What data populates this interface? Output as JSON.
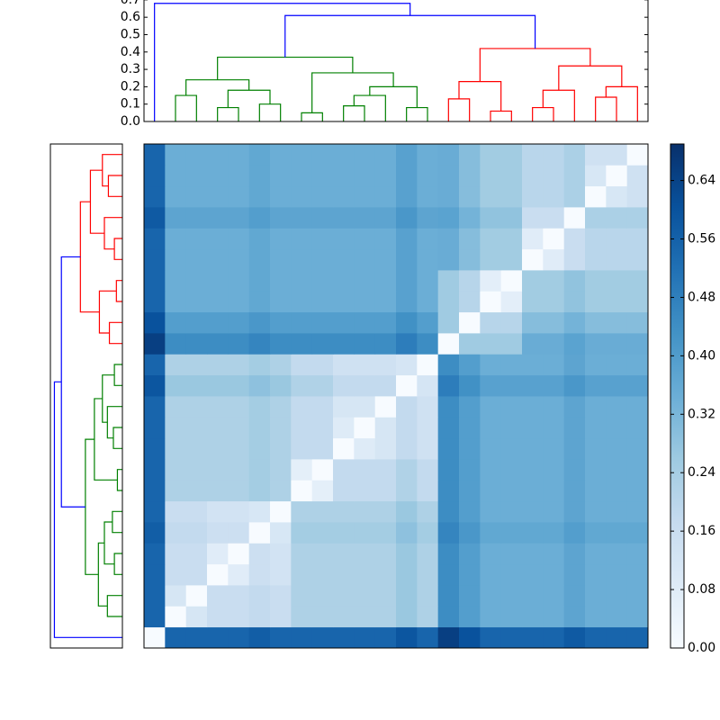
{
  "chart_data": {
    "type": "heatmap",
    "matrix": [
      [
        0,
        0.55,
        0.55,
        0.55,
        0.55,
        0.57,
        0.55,
        0.55,
        0.55,
        0.55,
        0.55,
        0.55,
        0.59,
        0.55,
        0.65,
        0.6,
        0.55,
        0.55,
        0.55,
        0.55,
        0.58,
        0.55,
        0.55,
        0.55
      ],
      [
        0.55,
        0,
        0.115,
        0.16,
        0.16,
        0.18,
        0.16,
        0.225,
        0.225,
        0.225,
        0.225,
        0.225,
        0.265,
        0.225,
        0.445,
        0.395,
        0.345,
        0.345,
        0.345,
        0.345,
        0.375,
        0.345,
        0.345,
        0.345
      ],
      [
        0.55,
        0.115,
        0,
        0.16,
        0.16,
        0.18,
        0.16,
        0.225,
        0.225,
        0.225,
        0.225,
        0.225,
        0.265,
        0.225,
        0.445,
        0.395,
        0.345,
        0.345,
        0.345,
        0.345,
        0.375,
        0.345,
        0.345,
        0.345
      ],
      [
        0.55,
        0.16,
        0.16,
        0,
        0.08,
        0.15,
        0.13,
        0.225,
        0.225,
        0.225,
        0.225,
        0.225,
        0.265,
        0.225,
        0.445,
        0.395,
        0.345,
        0.345,
        0.345,
        0.345,
        0.375,
        0.345,
        0.345,
        0.345
      ],
      [
        0.55,
        0.16,
        0.16,
        0.08,
        0,
        0.15,
        0.13,
        0.225,
        0.225,
        0.225,
        0.225,
        0.225,
        0.265,
        0.225,
        0.445,
        0.395,
        0.345,
        0.345,
        0.345,
        0.345,
        0.375,
        0.345,
        0.345,
        0.345
      ],
      [
        0.57,
        0.18,
        0.18,
        0.15,
        0.15,
        0,
        0.11,
        0.245,
        0.245,
        0.245,
        0.245,
        0.245,
        0.285,
        0.245,
        0.465,
        0.415,
        0.365,
        0.365,
        0.365,
        0.365,
        0.395,
        0.365,
        0.365,
        0.365
      ],
      [
        0.55,
        0.16,
        0.16,
        0.13,
        0.13,
        0.11,
        0,
        0.225,
        0.225,
        0.225,
        0.225,
        0.225,
        0.265,
        0.225,
        0.445,
        0.395,
        0.345,
        0.345,
        0.345,
        0.345,
        0.375,
        0.345,
        0.345,
        0.345
      ],
      [
        0.55,
        0.225,
        0.225,
        0.225,
        0.225,
        0.245,
        0.225,
        0,
        0.065,
        0.18,
        0.18,
        0.18,
        0.22,
        0.18,
        0.445,
        0.395,
        0.345,
        0.345,
        0.345,
        0.345,
        0.375,
        0.345,
        0.345,
        0.345
      ],
      [
        0.55,
        0.225,
        0.225,
        0.225,
        0.225,
        0.245,
        0.225,
        0.065,
        0,
        0.18,
        0.18,
        0.18,
        0.22,
        0.18,
        0.445,
        0.395,
        0.345,
        0.345,
        0.345,
        0.345,
        0.375,
        0.345,
        0.345,
        0.345
      ],
      [
        0.55,
        0.225,
        0.225,
        0.225,
        0.225,
        0.245,
        0.225,
        0.18,
        0.18,
        0,
        0.085,
        0.115,
        0.18,
        0.14,
        0.445,
        0.395,
        0.345,
        0.345,
        0.345,
        0.345,
        0.375,
        0.345,
        0.345,
        0.345
      ],
      [
        0.55,
        0.225,
        0.225,
        0.225,
        0.225,
        0.245,
        0.225,
        0.18,
        0.18,
        0.085,
        0,
        0.115,
        0.18,
        0.14,
        0.445,
        0.395,
        0.345,
        0.345,
        0.345,
        0.345,
        0.375,
        0.345,
        0.345,
        0.345
      ],
      [
        0.55,
        0.225,
        0.225,
        0.225,
        0.225,
        0.245,
        0.225,
        0.18,
        0.18,
        0.115,
        0.115,
        0,
        0.18,
        0.14,
        0.445,
        0.395,
        0.345,
        0.345,
        0.345,
        0.345,
        0.375,
        0.345,
        0.345,
        0.345
      ],
      [
        0.59,
        0.265,
        0.265,
        0.265,
        0.265,
        0.285,
        0.265,
        0.22,
        0.22,
        0.18,
        0.18,
        0.18,
        0,
        0.12,
        0.485,
        0.435,
        0.385,
        0.385,
        0.385,
        0.385,
        0.415,
        0.385,
        0.385,
        0.385
      ],
      [
        0.55,
        0.225,
        0.225,
        0.225,
        0.225,
        0.245,
        0.225,
        0.18,
        0.18,
        0.14,
        0.14,
        0.14,
        0.12,
        0,
        0.445,
        0.395,
        0.345,
        0.345,
        0.345,
        0.345,
        0.375,
        0.345,
        0.345,
        0.345
      ],
      [
        0.65,
        0.445,
        0.445,
        0.445,
        0.445,
        0.465,
        0.445,
        0.445,
        0.445,
        0.445,
        0.445,
        0.445,
        0.485,
        0.445,
        0,
        0.255,
        0.255,
        0.255,
        0.35,
        0.35,
        0.38,
        0.35,
        0.35,
        0.35
      ],
      [
        0.6,
        0.395,
        0.395,
        0.395,
        0.395,
        0.415,
        0.395,
        0.395,
        0.395,
        0.395,
        0.395,
        0.395,
        0.435,
        0.395,
        0.255,
        0,
        0.205,
        0.205,
        0.3,
        0.3,
        0.33,
        0.3,
        0.3,
        0.3
      ],
      [
        0.55,
        0.345,
        0.345,
        0.345,
        0.345,
        0.365,
        0.345,
        0.345,
        0.345,
        0.345,
        0.345,
        0.345,
        0.385,
        0.345,
        0.255,
        0.205,
        0,
        0.07,
        0.25,
        0.25,
        0.28,
        0.25,
        0.25,
        0.25
      ],
      [
        0.55,
        0.345,
        0.345,
        0.345,
        0.345,
        0.365,
        0.345,
        0.345,
        0.345,
        0.345,
        0.345,
        0.345,
        0.385,
        0.345,
        0.255,
        0.205,
        0.07,
        0,
        0.25,
        0.25,
        0.28,
        0.25,
        0.25,
        0.25
      ],
      [
        0.55,
        0.345,
        0.345,
        0.345,
        0.345,
        0.365,
        0.345,
        0.345,
        0.345,
        0.345,
        0.345,
        0.345,
        0.385,
        0.345,
        0.35,
        0.3,
        0.25,
        0.25,
        0,
        0.08,
        0.16,
        0.2,
        0.2,
        0.2
      ],
      [
        0.55,
        0.345,
        0.345,
        0.345,
        0.345,
        0.365,
        0.345,
        0.345,
        0.345,
        0.345,
        0.345,
        0.345,
        0.385,
        0.345,
        0.35,
        0.3,
        0.25,
        0.25,
        0.08,
        0,
        0.16,
        0.2,
        0.2,
        0.2
      ],
      [
        0.58,
        0.375,
        0.375,
        0.375,
        0.375,
        0.395,
        0.375,
        0.375,
        0.375,
        0.375,
        0.375,
        0.375,
        0.415,
        0.375,
        0.38,
        0.33,
        0.28,
        0.28,
        0.16,
        0.16,
        0,
        0.23,
        0.23,
        0.23
      ],
      [
        0.55,
        0.345,
        0.345,
        0.345,
        0.345,
        0.365,
        0.345,
        0.345,
        0.345,
        0.345,
        0.345,
        0.345,
        0.385,
        0.345,
        0.35,
        0.3,
        0.25,
        0.25,
        0.2,
        0.2,
        0.23,
        0,
        0.11,
        0.14
      ],
      [
        0.55,
        0.345,
        0.345,
        0.345,
        0.345,
        0.365,
        0.345,
        0.345,
        0.345,
        0.345,
        0.345,
        0.345,
        0.385,
        0.345,
        0.35,
        0.3,
        0.25,
        0.25,
        0.2,
        0.2,
        0.23,
        0.11,
        0,
        0.14
      ],
      [
        0.55,
        0.345,
        0.345,
        0.345,
        0.345,
        0.365,
        0.345,
        0.345,
        0.345,
        0.345,
        0.345,
        0.345,
        0.385,
        0.345,
        0.35,
        0.3,
        0.25,
        0.25,
        0.2,
        0.2,
        0.23,
        0.14,
        0.14,
        0
      ]
    ],
    "zlim": [
      0,
      0.69
    ],
    "zticks": [
      {
        "value": 0,
        "label": "0.00"
      },
      0.08,
      0.16,
      0.24,
      0.32,
      {
        "value": 0.4,
        "label": "0.40"
      },
      0.48,
      0.56,
      0.64
    ],
    "colorscale": [
      "#f7fbff",
      "#deebf7",
      "#c6dbef",
      "#9ecae1",
      "#6baed6",
      "#4292c6",
      "#2171b5",
      "#08519c",
      "#08306b"
    ],
    "dendrogram": {
      "xlim": [
        0,
        240
      ],
      "ylim": [
        0,
        0.72
      ],
      "yticks": [
        {
          "value": 0,
          "label": "0.0"
        },
        0.1,
        0.2,
        0.3,
        0.4,
        0.5,
        0.6,
        0.7
      ],
      "icoord": [
        [
          15,
          15,
          25,
          25
        ],
        [
          35,
          35,
          45,
          45
        ],
        [
          55,
          55,
          65,
          65
        ],
        [
          40,
          40,
          60,
          60
        ],
        [
          20,
          20,
          50,
          50
        ],
        [
          75,
          75,
          85,
          85
        ],
        [
          95,
          95,
          105,
          105
        ],
        [
          100,
          100,
          115,
          115
        ],
        [
          125,
          125,
          135,
          135
        ],
        [
          107.5,
          107.5,
          130,
          130
        ],
        [
          80,
          80,
          118.75,
          118.75
        ],
        [
          35,
          35,
          99.375,
          99.375
        ],
        [
          145,
          145,
          155,
          155
        ],
        [
          165,
          165,
          175,
          175
        ],
        [
          150,
          150,
          170,
          170
        ],
        [
          185,
          185,
          195,
          195
        ],
        [
          190,
          190,
          205,
          205
        ],
        [
          215,
          215,
          225,
          225
        ],
        [
          220,
          220,
          235,
          235
        ],
        [
          197.5,
          197.5,
          227.5,
          227.5
        ],
        [
          160,
          160,
          212.5,
          212.5
        ],
        [
          67.1875,
          67.1875,
          186.25,
          186.25
        ],
        [
          5,
          5,
          126.71875,
          126.71875
        ]
      ],
      "dcoord": [
        [
          0,
          0.15,
          0.15,
          0
        ],
        [
          0,
          0.08,
          0.08,
          0
        ],
        [
          0,
          0.1,
          0.1,
          0
        ],
        [
          0.08,
          0.18,
          0.18,
          0.1
        ],
        [
          0.15,
          0.24,
          0.24,
          0.18
        ],
        [
          0,
          0.05,
          0.05,
          0
        ],
        [
          0,
          0.09,
          0.09,
          0
        ],
        [
          0.09,
          0.15,
          0.15,
          0
        ],
        [
          0,
          0.08,
          0.08,
          0
        ],
        [
          0.15,
          0.2,
          0.2,
          0.08
        ],
        [
          0.05,
          0.28,
          0.28,
          0.2
        ],
        [
          0.24,
          0.37,
          0.37,
          0.28
        ],
        [
          0,
          0.13,
          0.13,
          0
        ],
        [
          0,
          0.06,
          0.06,
          0
        ],
        [
          0.13,
          0.23,
          0.23,
          0.06
        ],
        [
          0,
          0.08,
          0.08,
          0
        ],
        [
          0.08,
          0.18,
          0.18,
          0
        ],
        [
          0,
          0.14,
          0.14,
          0
        ],
        [
          0.14,
          0.2,
          0.2,
          0
        ],
        [
          0.18,
          0.32,
          0.32,
          0.2
        ],
        [
          0.23,
          0.42,
          0.42,
          0.32
        ],
        [
          0.37,
          0.61,
          0.61,
          0.42
        ],
        [
          0,
          0.68,
          0.68,
          0.61
        ]
      ],
      "colors": [
        "#008000",
        "#008000",
        "#008000",
        "#008000",
        "#008000",
        "#008000",
        "#008000",
        "#008000",
        "#008000",
        "#008000",
        "#008000",
        "#008000",
        "#ff0000",
        "#ff0000",
        "#ff0000",
        "#ff0000",
        "#ff0000",
        "#ff0000",
        "#ff0000",
        "#ff0000",
        "#ff0000",
        "#0000ff",
        "#0000ff"
      ]
    }
  }
}
